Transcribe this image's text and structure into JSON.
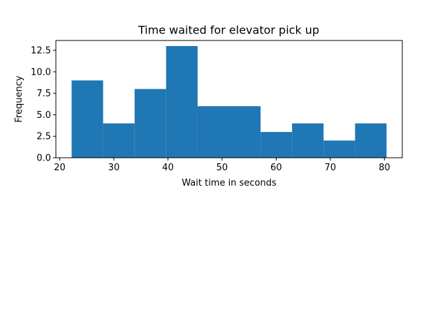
{
  "chart_data": {
    "type": "bar",
    "subtype": "histogram",
    "title": "Time waited for elevator pick up",
    "xlabel": "Wait time in seconds",
    "ylabel": "Frequency",
    "bin_edges": [
      22.2,
      28.02,
      33.84,
      39.66,
      45.48,
      51.3,
      57.12,
      62.94,
      68.76,
      74.58,
      80.4
    ],
    "values": [
      9,
      4,
      8,
      13,
      6,
      6,
      3,
      4,
      2,
      4
    ],
    "xlim": [
      19.29,
      83.31
    ],
    "ylim": [
      0,
      13.65
    ],
    "xticks": [
      20,
      30,
      40,
      50,
      60,
      70,
      80
    ],
    "yticks": [
      0.0,
      2.5,
      5.0,
      7.5,
      10.0,
      12.5
    ],
    "xtick_labels": [
      "20",
      "30",
      "40",
      "50",
      "60",
      "70",
      "80"
    ],
    "ytick_labels": [
      "0.0",
      "2.5",
      "5.0",
      "7.5",
      "10.0",
      "12.5"
    ],
    "bar_color": "#1f77b4",
    "grid": false,
    "legend": "none"
  }
}
